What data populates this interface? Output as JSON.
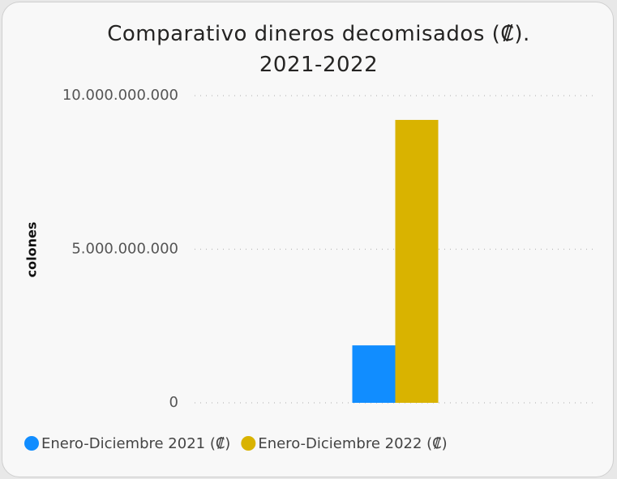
{
  "chart_data": {
    "type": "bar",
    "title": "Comparativo dineros decomisados (₡). 2021-2022",
    "y_label": "colones",
    "categories": [
      null
    ],
    "series": [
      {
        "name": "Enero-Diciembre 2021 (₡)",
        "color": "#118dff",
        "values": [
          1870000000
        ]
      },
      {
        "name": "Enero-Diciembre 2022 (₡)",
        "color": "#d9b300",
        "values": [
          9210000000
        ]
      }
    ],
    "ylim": [
      0,
      10000000000
    ],
    "yticks": [
      0,
      {
        "value": 5000000000,
        "label": "5.000.000.000"
      },
      {
        "value": 10000000000,
        "label": "10.000.000.000"
      }
    ],
    "grid": true,
    "legend": "bottom-left"
  }
}
